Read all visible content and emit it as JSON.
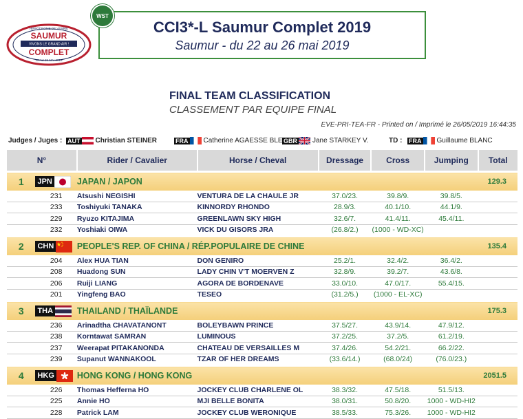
{
  "header": {
    "event_title": "CCI3*-L Saumur Complet 2019",
    "event_subtitle": "Saumur - du 22 au 26 mai 2019",
    "wst_badge": "WST",
    "logo": {
      "top": "HIPPODROME DE VERRIE",
      "line1": "SAUMUR",
      "middle": "VIVONS LE GRAND AIR !",
      "line2": "COMPLET",
      "bottom": "22 AU 26 MAI 2019"
    }
  },
  "document": {
    "title": "FINAL TEAM CLASSIFICATION",
    "subtitle": "CLASSEMENT PAR EQUIPE FINAL",
    "print_line": "EVE-PRI-TEA-FR - Printed on / Imprimé le 26/05/2019 16:44:35"
  },
  "judges": {
    "label": "Judges / Juges :",
    "judge1_code": "AUT",
    "judge1_name": "Christian STEINER",
    "judge2_code": "FRA",
    "judge2_name": "Catherine AGAESSE BLEUZ",
    "judge3_code": "GBR",
    "judge3_name": "Jane STARKEY V.",
    "td_label": "TD :",
    "td_code": "FRA",
    "td_name": "Guillaume BLANC"
  },
  "columns": {
    "rank": "N°",
    "rider": "Rider / Cavalier",
    "horse": "Horse / Cheval",
    "dressage": "Dressage",
    "cross": "Cross",
    "jumping": "Jumping",
    "total": "Total"
  },
  "teams": [
    {
      "rank": "1",
      "code": "JPN",
      "flag": "jpn",
      "name": "JAPAN / JAPON",
      "total": "129.3",
      "members": [
        {
          "bib": "231",
          "rider": "Atsushi NEGISHI",
          "horse": "VENTURA DE LA CHAULE JR",
          "dressage": "37.0/23.",
          "cross": "39.8/9.",
          "jumping": "39.8/5."
        },
        {
          "bib": "233",
          "rider": "Toshiyuki TANAKA",
          "horse": "KINNORDY RHONDO",
          "dressage": "28.9/3.",
          "cross": "40.1/10.",
          "jumping": "44.1/9."
        },
        {
          "bib": "229",
          "rider": "Ryuzo KITAJIMA",
          "horse": "GREENLAWN SKY HIGH",
          "dressage": "32.6/7.",
          "cross": "41.4/11.",
          "jumping": "45.4/11."
        },
        {
          "bib": "232",
          "rider": "Yoshiaki OIWA",
          "horse": "VICK DU GISORS JRA",
          "dressage": "(26.8/2.)",
          "cross": "(1000 - WD-XC)",
          "jumping": ""
        }
      ]
    },
    {
      "rank": "2",
      "code": "CHN",
      "flag": "chn",
      "name": "PEOPLE'S REP. OF CHINA / RÉP.POPULAIRE DE CHINE",
      "total": "135.4",
      "members": [
        {
          "bib": "204",
          "rider": "Alex HUA TIAN",
          "horse": "DON GENIRO",
          "dressage": "25.2/1.",
          "cross": "32.4/2.",
          "jumping": "36.4/2."
        },
        {
          "bib": "208",
          "rider": "Huadong SUN",
          "horse": "LADY CHIN V'T MOERVEN Z",
          "dressage": "32.8/9.",
          "cross": "39.2/7.",
          "jumping": "43.6/8."
        },
        {
          "bib": "206",
          "rider": "Ruiji LIANG",
          "horse": "AGORA DE BORDENAVE",
          "dressage": "33.0/10.",
          "cross": "47.0/17.",
          "jumping": "55.4/15."
        },
        {
          "bib": "201",
          "rider": "Yingfeng BAO",
          "horse": "TESEO",
          "dressage": "(31.2/5.)",
          "cross": "(1000 - EL-XC)",
          "jumping": ""
        }
      ]
    },
    {
      "rank": "3",
      "code": "THA",
      "flag": "tha",
      "name": "THAILAND / THAÏLANDE",
      "total": "175.3",
      "members": [
        {
          "bib": "236",
          "rider": "Arinadtha CHAVATANONT",
          "horse": "BOLEYBAWN PRINCE",
          "dressage": "37.5/27.",
          "cross": "43.9/14.",
          "jumping": "47.9/12."
        },
        {
          "bib": "238",
          "rider": "Korntawat SAMRAN",
          "horse": "LUMINOUS",
          "dressage": "37.2/25.",
          "cross": "37.2/5.",
          "jumping": "61.2/19."
        },
        {
          "bib": "237",
          "rider": "Weerapat PITAKANONDA",
          "horse": "CHATEAU DE VERSAILLES M",
          "dressage": "37.4/26.",
          "cross": "54.2/21.",
          "jumping": "66.2/22."
        },
        {
          "bib": "239",
          "rider": "Supanut WANNAKOOL",
          "horse": "TZAR OF HER DREAMS",
          "dressage": "(33.6/14.)",
          "cross": "(68.0/24)",
          "jumping": "(76.0/23.)"
        }
      ]
    },
    {
      "rank": "4",
      "code": "HKG",
      "flag": "hkg",
      "name": "HONG KONG / HONG KONG",
      "total": "2051.5",
      "members": [
        {
          "bib": "226",
          "rider": "Thomas Hefferna HO",
          "horse": "JOCKEY CLUB CHARLENE OL",
          "dressage": "38.3/32.",
          "cross": "47.5/18.",
          "jumping": "51.5/13."
        },
        {
          "bib": "225",
          "rider": "Annie HO",
          "horse": "MJI BELLE BONITA",
          "dressage": "38.0/31.",
          "cross": "50.8/20.",
          "jumping": "1000 - WD-HI2"
        },
        {
          "bib": "228",
          "rider": "Patrick LAM",
          "horse": "JOCKEY CLUB WERONIQUE",
          "dressage": "38.5/33.",
          "cross": "75.3/26.",
          "jumping": "1000 - WD-HI2"
        }
      ]
    }
  ]
}
